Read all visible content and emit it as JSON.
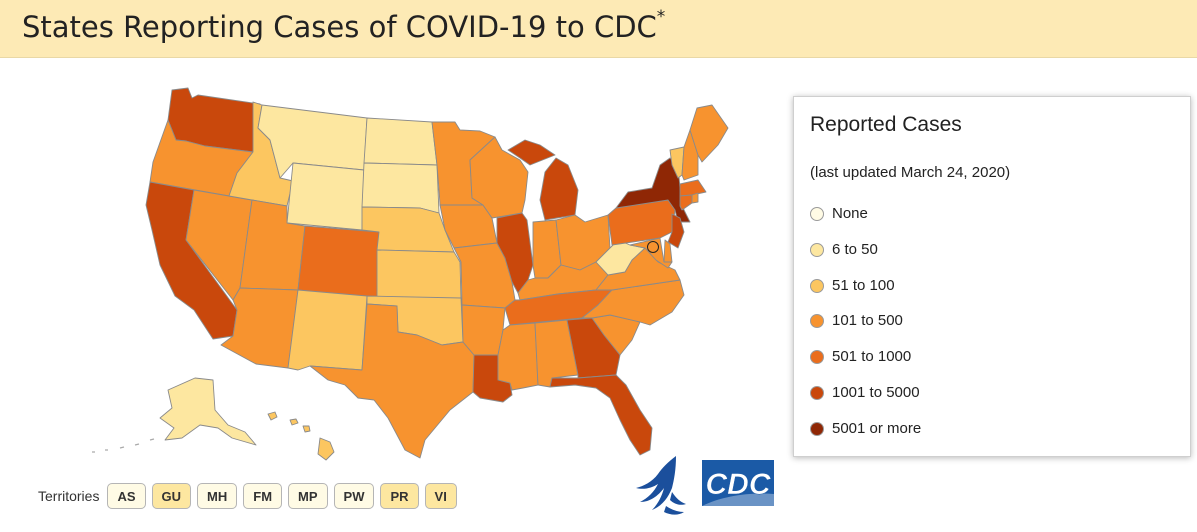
{
  "header": {
    "title": "States Reporting Cases of COVID-19 to CDC",
    "title_mark": "*"
  },
  "legend": {
    "title": "Reported Cases",
    "updated": "(last updated March 24, 2020)",
    "items": [
      {
        "label": "None",
        "color": "#fffbe5"
      },
      {
        "label": "6 to 50",
        "color": "#fde7a0"
      },
      {
        "label": "51 to 100",
        "color": "#fcc660"
      },
      {
        "label": "101 to 500",
        "color": "#f7932f"
      },
      {
        "label": "501 to 1000",
        "color": "#ea6d1c"
      },
      {
        "label": "1001 to 5000",
        "color": "#c9480c"
      },
      {
        "label": "5001 or more",
        "color": "#8f2705"
      }
    ]
  },
  "map_data": {
    "states": [
      {
        "id": "WA",
        "range": "1001 to 5000"
      },
      {
        "id": "OR",
        "range": "101 to 500"
      },
      {
        "id": "CA",
        "range": "1001 to 5000"
      },
      {
        "id": "NV",
        "range": "101 to 500"
      },
      {
        "id": "ID",
        "range": "51 to 100"
      },
      {
        "id": "MT",
        "range": "6 to 50"
      },
      {
        "id": "WY",
        "range": "6 to 50"
      },
      {
        "id": "UT",
        "range": "101 to 500"
      },
      {
        "id": "AZ",
        "range": "101 to 500"
      },
      {
        "id": "CO",
        "range": "501 to 1000"
      },
      {
        "id": "NM",
        "range": "51 to 100"
      },
      {
        "id": "ND",
        "range": "6 to 50"
      },
      {
        "id": "SD",
        "range": "6 to 50"
      },
      {
        "id": "NE",
        "range": "51 to 100"
      },
      {
        "id": "KS",
        "range": "51 to 100"
      },
      {
        "id": "OK",
        "range": "51 to 100"
      },
      {
        "id": "TX",
        "range": "101 to 500"
      },
      {
        "id": "MN",
        "range": "101 to 500"
      },
      {
        "id": "IA",
        "range": "101 to 500"
      },
      {
        "id": "MO",
        "range": "101 to 500"
      },
      {
        "id": "AR",
        "range": "101 to 500"
      },
      {
        "id": "LA",
        "range": "1001 to 5000"
      },
      {
        "id": "WI",
        "range": "101 to 500"
      },
      {
        "id": "IL",
        "range": "1001 to 5000"
      },
      {
        "id": "MI",
        "range": "1001 to 5000"
      },
      {
        "id": "IN",
        "range": "101 to 500"
      },
      {
        "id": "OH",
        "range": "101 to 500"
      },
      {
        "id": "KY",
        "range": "101 to 500"
      },
      {
        "id": "TN",
        "range": "501 to 1000"
      },
      {
        "id": "MS",
        "range": "101 to 500"
      },
      {
        "id": "AL",
        "range": "101 to 500"
      },
      {
        "id": "GA",
        "range": "1001 to 5000"
      },
      {
        "id": "FL",
        "range": "1001 to 5000"
      },
      {
        "id": "SC",
        "range": "101 to 500"
      },
      {
        "id": "NC",
        "range": "101 to 500"
      },
      {
        "id": "VA",
        "range": "101 to 500"
      },
      {
        "id": "WV",
        "range": "6 to 50"
      },
      {
        "id": "PA",
        "range": "501 to 1000"
      },
      {
        "id": "NY",
        "range": "5001 or more"
      },
      {
        "id": "VT",
        "range": "51 to 100"
      },
      {
        "id": "NH",
        "range": "101 to 500"
      },
      {
        "id": "ME",
        "range": "101 to 500"
      },
      {
        "id": "MA",
        "range": "501 to 1000"
      },
      {
        "id": "RI",
        "range": "101 to 500"
      },
      {
        "id": "CT",
        "range": "501 to 1000"
      },
      {
        "id": "NJ",
        "range": "1001 to 5000"
      },
      {
        "id": "DE",
        "range": "101 to 500"
      },
      {
        "id": "MD",
        "range": "101 to 500"
      },
      {
        "id": "DC",
        "range": "101 to 500"
      },
      {
        "id": "AK",
        "range": "6 to 50"
      },
      {
        "id": "HI",
        "range": "51 to 100"
      }
    ]
  },
  "territories": {
    "label": "Territories",
    "items": [
      {
        "code": "AS",
        "color": "#fffbe5"
      },
      {
        "code": "GU",
        "color": "#fde7a0"
      },
      {
        "code": "MH",
        "color": "#fffbe5"
      },
      {
        "code": "FM",
        "color": "#fffbe5"
      },
      {
        "code": "MP",
        "color": "#fffbe5"
      },
      {
        "code": "PW",
        "color": "#fffbe5"
      },
      {
        "code": "PR",
        "color": "#fde7a0"
      },
      {
        "code": "VI",
        "color": "#fde7a0"
      }
    ]
  },
  "logos": {
    "agency": "CDC"
  }
}
